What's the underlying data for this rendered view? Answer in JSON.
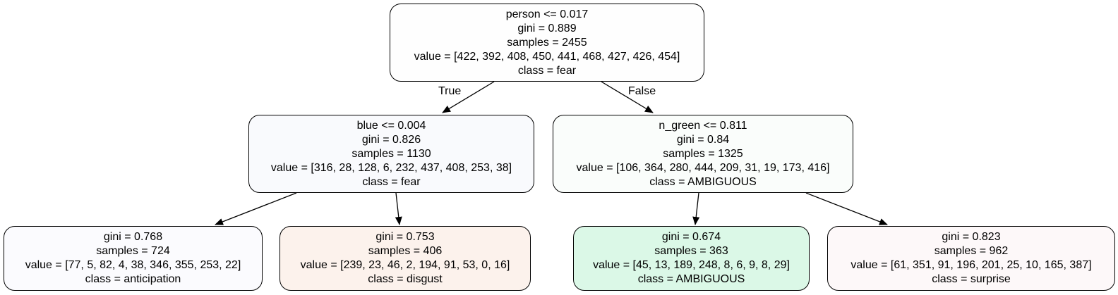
{
  "tree": {
    "root": {
      "split": "person <= 0.017",
      "gini": "gini = 0.889",
      "samples": "samples = 2455",
      "value": "value = [422, 392, 408, 450, 441, 468, 427, 426, 454]",
      "class": "class = fear",
      "fill": "#fefefe"
    },
    "n1": {
      "split": "blue <= 0.004",
      "gini": "gini = 0.826",
      "samples": "samples = 1130",
      "value": "value = [316, 28, 128, 6, 232, 437, 408, 253, 38]",
      "class": "class = fear",
      "fill": "#f9fafd"
    },
    "n2": {
      "split": "n_green <= 0.811",
      "gini": "gini = 0.84",
      "samples": "samples = 1325",
      "value": "value = [106, 364, 280, 444, 209, 31, 19, 173, 416]",
      "class": "class = AMBIGUOUS",
      "fill": "#fafdfb"
    },
    "n3": {
      "gini": "gini = 0.768",
      "samples": "samples = 724",
      "value": "value = [77, 5, 82, 4, 38, 346, 355, 253, 22]",
      "class": "class = anticipation",
      "fill": "#fbfbfe"
    },
    "n4": {
      "gini": "gini = 0.753",
      "samples": "samples = 406",
      "value": "value = [239, 23, 46, 2, 194, 91, 53, 0, 16]",
      "class": "class = disgust",
      "fill": "#fcf2ec"
    },
    "n5": {
      "gini": "gini = 0.674",
      "samples": "samples = 363",
      "value": "value = [45, 13, 189, 248, 8, 6, 9, 8, 29]",
      "class": "class = AMBIGUOUS",
      "fill": "#dbf8e7"
    },
    "n6": {
      "gini": "gini = 0.823",
      "samples": "samples = 962",
      "value": "value = [61, 351, 91, 196, 201, 25, 10, 165, 387]",
      "class": "class = surprise",
      "fill": "#fdf8f9"
    }
  },
  "edges": {
    "true_label": "True",
    "false_label": "False"
  }
}
